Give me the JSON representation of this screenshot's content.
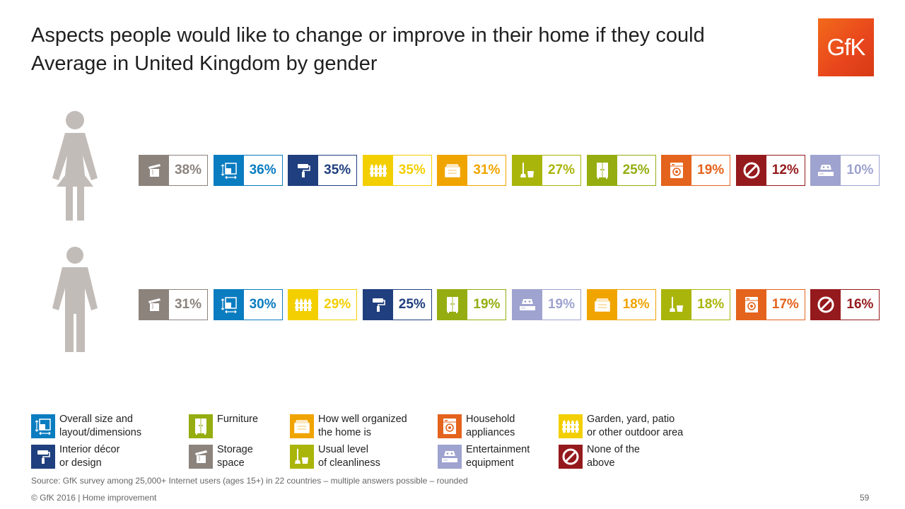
{
  "title": {
    "line1": "Aspects people would like to change or improve in their home if they could",
    "line2": "Average in United Kingdom by gender"
  },
  "logo": {
    "text": "GfK"
  },
  "categories": {
    "size": {
      "label": "Overall size and\nlayout/dimensions",
      "color": "#0a7cc0",
      "icon": "size-layout-icon"
    },
    "furniture": {
      "label": "Furniture",
      "color": "#95ad10",
      "icon": "wardrobe-icon"
    },
    "organized": {
      "label": "How well organized\nthe home is",
      "color": "#f0a400",
      "icon": "drawer-icon"
    },
    "appliances": {
      "label": "Household\nappliances",
      "color": "#e4631d",
      "icon": "washing-machine-icon"
    },
    "garden": {
      "label": "Garden, yard, patio\nor other outdoor area",
      "color": "#f3cf00",
      "icon": "fence-icon"
    },
    "decor": {
      "label": "Interior décor\nor design",
      "color": "#1f3f7e",
      "icon": "paint-roller-icon"
    },
    "storage": {
      "label": "Storage\nspace",
      "color": "#8c837d",
      "icon": "storage-box-icon"
    },
    "cleanliness": {
      "label": "Usual level\nof cleanliness",
      "color": "#aab50b",
      "icon": "mop-bucket-icon"
    },
    "entertainment": {
      "label": "Entertainment\nequipment",
      "color": "#9ea3cf",
      "icon": "game-console-icon"
    },
    "none": {
      "label": "None of the\nabove",
      "color": "#951a1d",
      "icon": "no-sign-icon"
    }
  },
  "chart_data": {
    "type": "table",
    "title": "Aspects people would like to change or improve in their home if they could",
    "subtitle": "Average in United Kingdom by gender",
    "series": [
      {
        "group": "female",
        "items": [
          {
            "key": "storage",
            "label": "38%",
            "value": 38
          },
          {
            "key": "size",
            "label": "36%",
            "value": 36
          },
          {
            "key": "decor",
            "label": "35%",
            "value": 35
          },
          {
            "key": "garden",
            "label": "35%",
            "value": 35
          },
          {
            "key": "organized",
            "label": "31%",
            "value": 31
          },
          {
            "key": "cleanliness",
            "label": "27%",
            "value": 27
          },
          {
            "key": "furniture",
            "label": "25%",
            "value": 25
          },
          {
            "key": "appliances",
            "label": "19%",
            "value": 19
          },
          {
            "key": "none",
            "label": "12%",
            "value": 12
          },
          {
            "key": "entertainment",
            "label": "10%",
            "value": 10
          }
        ]
      },
      {
        "group": "male",
        "items": [
          {
            "key": "storage",
            "label": "31%",
            "value": 31
          },
          {
            "key": "size",
            "label": "30%",
            "value": 30
          },
          {
            "key": "garden",
            "label": "29%",
            "value": 29
          },
          {
            "key": "decor",
            "label": "25%",
            "value": 25
          },
          {
            "key": "furniture",
            "label": "19%",
            "value": 19
          },
          {
            "key": "entertainment",
            "label": "19%",
            "value": 19
          },
          {
            "key": "organized",
            "label": "18%",
            "value": 18
          },
          {
            "key": "cleanliness",
            "label": "18%",
            "value": 18
          },
          {
            "key": "appliances",
            "label": "17%",
            "value": 17
          },
          {
            "key": "none",
            "label": "16%",
            "value": 16
          }
        ]
      }
    ]
  },
  "legend_order": [
    "size",
    "furniture",
    "organized",
    "appliances",
    "garden",
    "decor",
    "storage",
    "cleanliness",
    "entertainment",
    "none"
  ],
  "source": "Source: GfK survey among 25,000+ Internet users (ages 15+) in 22 countries – multiple answers possible – rounded",
  "footer": "© GfK 2016 | Home improvement",
  "page_number": "59"
}
